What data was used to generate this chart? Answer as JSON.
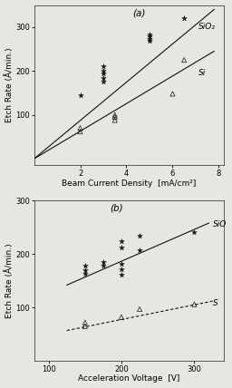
{
  "fig_width": 2.56,
  "fig_height": 4.28,
  "dpi": 100,
  "background_color": "#e8e6e0",
  "panel_a": {
    "title": "(a)",
    "xlabel": "Beam Current Density  [mA/cm²]",
    "ylabel": "Etch Rate (Å/min.)",
    "xlim": [
      0,
      8.2
    ],
    "ylim": [
      -15,
      350
    ],
    "xticks": [
      2,
      4,
      6,
      8
    ],
    "yticks": [
      100,
      200,
      300
    ],
    "sio2_scatter_x": [
      2.0,
      3.0,
      3.0,
      3.0,
      3.0,
      3.0,
      5.0,
      5.0,
      5.0,
      5.0,
      6.5
    ],
    "sio2_scatter_y": [
      145,
      175,
      185,
      195,
      200,
      210,
      268,
      273,
      278,
      283,
      320
    ],
    "sio2_line_x": [
      0.0,
      7.8
    ],
    "sio2_line_y": [
      0,
      340
    ],
    "sio2_label": "SiO₂",
    "si_scatter_x": [
      2.0,
      2.0,
      3.5,
      3.5,
      3.5,
      6.0,
      6.5
    ],
    "si_scatter_y": [
      62,
      70,
      88,
      95,
      100,
      148,
      225
    ],
    "si_line_x": [
      0.0,
      7.8
    ],
    "si_line_y": [
      0,
      245
    ],
    "si_label": "Si"
  },
  "panel_b": {
    "title": "(b)",
    "xlabel": "Acceleration Voltage  [V]",
    "ylabel": "Etch Rate (Å/min.)",
    "xlim": [
      80,
      340
    ],
    "ylim": [
      0,
      300
    ],
    "xticks": [
      100,
      200,
      300
    ],
    "yticks": [
      100,
      200,
      300
    ],
    "sio2_scatter_x": [
      150,
      150,
      150,
      175,
      175,
      200,
      200,
      200,
      200,
      200,
      225,
      225,
      300
    ],
    "sio2_scatter_y": [
      163,
      170,
      178,
      178,
      185,
      162,
      172,
      182,
      213,
      224,
      208,
      234,
      242
    ],
    "sio2_line_x": [
      125,
      320
    ],
    "sio2_line_y": [
      142,
      258
    ],
    "sio2_label": "SiO",
    "si_scatter_x": [
      150,
      150,
      200,
      225,
      300
    ],
    "si_scatter_y": [
      65,
      72,
      82,
      97,
      106
    ],
    "si_line_x": [
      125,
      325
    ],
    "si_line_y": [
      57,
      112
    ],
    "si_label": "S"
  },
  "line_color": "#111111",
  "marker_size_star": 18,
  "marker_size_tri": 14,
  "font_size_label": 6.5,
  "font_size_tick": 6,
  "font_size_title": 7.5,
  "font_size_annot": 6.5
}
